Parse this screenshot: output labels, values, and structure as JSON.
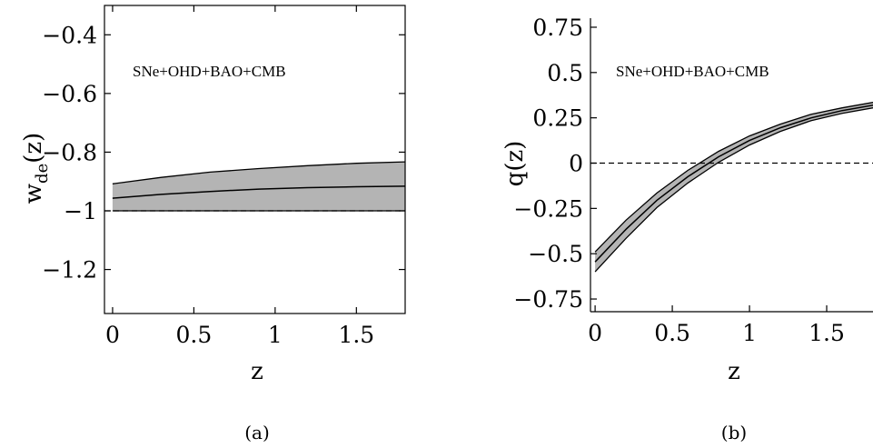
{
  "chart_data": [
    {
      "type": "line",
      "panel_label": "(a)",
      "annotation": "SNe+OHD+BAO+CMB",
      "xlabel": "z",
      "ylabel_main": "w",
      "ylabel_sub": "de",
      "ylabel_tail": "(z)",
      "xlim": [
        -0.05,
        1.8
      ],
      "ylim": [
        -1.35,
        -0.3
      ],
      "x_ticks": [
        0,
        0.5,
        1,
        1.5
      ],
      "x_tick_labels": [
        "0",
        "0.5",
        "1",
        "1.5"
      ],
      "y_ticks": [
        -0.4,
        -0.6,
        -0.8,
        -1,
        -1.2
      ],
      "y_tick_labels": [
        "−0.4",
        "−0.6",
        "−0.8",
        "−1",
        "−1.2"
      ],
      "reference_line": {
        "y": -1,
        "style": "dashed"
      },
      "band_color": "#b4b4b4",
      "series": [
        {
          "role": "best-fit",
          "x": [
            0,
            0.3,
            0.6,
            0.9,
            1.2,
            1.5,
            1.8
          ],
          "y": [
            -0.957,
            -0.944,
            -0.934,
            -0.926,
            -0.921,
            -0.918,
            -0.916
          ]
        },
        {
          "role": "band-upper",
          "x": [
            0,
            0.3,
            0.6,
            0.9,
            1.2,
            1.5,
            1.8
          ],
          "y": [
            -0.908,
            -0.886,
            -0.868,
            -0.856,
            -0.846,
            -0.838,
            -0.833
          ]
        },
        {
          "role": "band-lower",
          "x": [
            0,
            0.3,
            0.6,
            0.9,
            1.2,
            1.5,
            1.8
          ],
          "y": [
            -1.0,
            -1.0,
            -1.0,
            -1.0,
            -1.0,
            -1.0,
            -1.0
          ]
        }
      ]
    },
    {
      "type": "line",
      "panel_label": "(b)",
      "annotation": "SNe+OHD+BAO+CMB",
      "xlabel": "z",
      "ylabel_main": "q(z)",
      "xlim": [
        -0.03,
        1.8
      ],
      "ylim": [
        -0.82,
        0.8
      ],
      "x_ticks": [
        0,
        0.5,
        1,
        1.5
      ],
      "x_tick_labels": [
        "0",
        "0.5",
        "1",
        "1.5"
      ],
      "y_ticks": [
        0.75,
        0.5,
        0.25,
        0,
        -0.25,
        -0.5,
        -0.75
      ],
      "y_tick_labels": [
        "0.75",
        "0.5",
        "0.25",
        "0",
        "−0.25",
        "−0.5",
        "−0.75"
      ],
      "reference_line": {
        "y": 0,
        "style": "dashed"
      },
      "band_color": "#b4b4b4",
      "series": [
        {
          "role": "best-fit",
          "x": [
            0,
            0.2,
            0.4,
            0.6,
            0.8,
            1.0,
            1.2,
            1.4,
            1.6,
            1.8
          ],
          "y": [
            -0.545,
            -0.365,
            -0.205,
            -0.075,
            0.035,
            0.125,
            0.195,
            0.25,
            0.29,
            0.32
          ]
        },
        {
          "role": "band-upper",
          "x": [
            0,
            0.2,
            0.4,
            0.6,
            0.8,
            1.0,
            1.2,
            1.4,
            1.6,
            1.8
          ],
          "y": [
            -0.49,
            -0.315,
            -0.165,
            -0.04,
            0.065,
            0.15,
            0.215,
            0.27,
            0.305,
            0.335
          ]
        },
        {
          "role": "band-lower",
          "x": [
            0,
            0.2,
            0.4,
            0.6,
            0.8,
            1.0,
            1.2,
            1.4,
            1.6,
            1.8
          ],
          "y": [
            -0.6,
            -0.415,
            -0.245,
            -0.11,
            0.005,
            0.1,
            0.175,
            0.235,
            0.275,
            0.305
          ]
        }
      ]
    }
  ]
}
